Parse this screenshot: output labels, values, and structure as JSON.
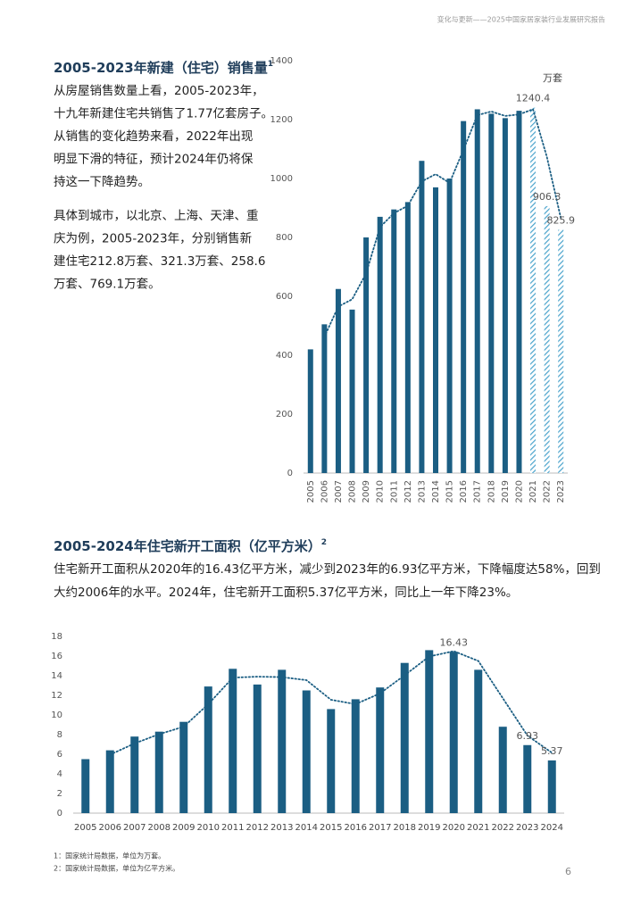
{
  "header": "变化与更新——2025中国家居家装行业发展研究报告",
  "sections": [
    {
      "paragraphs": [
        [
          "从房屋销售数量上看，2005-2023年，",
          "十九年新建住宅共销售了1.77亿套房子。",
          "从销售的变化趋势来看，2022年出现",
          "明显下滑的特征，预计2024年仍将保",
          "持这一下降趋势。"
        ],
        [
          "具体到城市，以北京、上海、天津、重",
          "庆为例，2005-2023年，分别销售新",
          "建住宅212.8万套、321.3万套、258.6",
          "万套、769.1万套。"
        ]
      ]
    },
    {
      "paragraphs": [
        [
          "住宅新开工面积从2020年的16.43亿平方米，减少到2023年的6.93亿平方米，下降幅度达58%，回到",
          "大约2006年的水平。2024年，住宅新开工面积5.37亿平方米，同比上一年下降23%。"
        ]
      ]
    }
  ],
  "chart_data": [
    {
      "type": "bar",
      "title": "2005-2023年新建（住宅）销售量",
      "title_ref": "1",
      "unit": "万套",
      "categories": [
        "2005",
        "2006",
        "2007",
        "2008",
        "2009",
        "2010",
        "2011",
        "2012",
        "2013",
        "2014",
        "2015",
        "2016",
        "2017",
        "2018",
        "2019",
        "2020",
        "2021",
        "2022",
        "2023"
      ],
      "values": [
        420,
        505,
        625,
        555,
        800,
        870,
        895,
        920,
        1060,
        970,
        1000,
        1195,
        1235,
        1220,
        1205,
        1230,
        1240.4,
        906.3,
        825.9
      ],
      "value_labels": [
        null,
        null,
        null,
        null,
        null,
        null,
        null,
        null,
        null,
        null,
        null,
        null,
        null,
        null,
        null,
        null,
        "1240.4",
        "906.3",
        "825.9"
      ],
      "hatched": [
        false,
        false,
        false,
        false,
        false,
        false,
        false,
        false,
        false,
        false,
        false,
        false,
        false,
        false,
        false,
        false,
        true,
        true,
        true
      ],
      "trend": [
        null,
        462.5,
        565,
        590,
        677.5,
        835,
        882.5,
        907.5,
        990,
        1015,
        985,
        1097.5,
        1215,
        1227.5,
        1212.5,
        1217.5,
        1235.2,
        1073.4,
        866.1
      ],
      "color": "#1b5e83",
      "hatch_color": "#4aa3cc",
      "trend_style": "dotted",
      "ylim": [
        0,
        1400
      ],
      "yticks": [
        0,
        200,
        400,
        600,
        800,
        1000,
        1200,
        1400
      ],
      "x_label_rotation": -90
    },
    {
      "type": "bar",
      "title": "2005-2024年住宅新开工面积（亿平方米）",
      "title_ref": "2",
      "categories": [
        "2005",
        "2006",
        "2007",
        "2008",
        "2009",
        "2010",
        "2011",
        "2012",
        "2013",
        "2014",
        "2015",
        "2016",
        "2017",
        "2018",
        "2019",
        "2020",
        "2021",
        "2022",
        "2023",
        "2024"
      ],
      "values": [
        5.5,
        6.4,
        7.8,
        8.3,
        9.3,
        12.9,
        14.7,
        13.1,
        14.6,
        12.5,
        10.6,
        11.6,
        12.8,
        15.3,
        16.6,
        16.43,
        14.6,
        8.8,
        6.93,
        5.37
      ],
      "value_labels": [
        null,
        null,
        null,
        null,
        null,
        null,
        null,
        null,
        null,
        null,
        null,
        null,
        null,
        null,
        null,
        "16.43",
        null,
        null,
        "6.93",
        "5.37"
      ],
      "trend": [
        null,
        5.95,
        7.1,
        8.05,
        8.8,
        11.1,
        13.8,
        13.9,
        13.85,
        13.55,
        11.55,
        11.1,
        12.2,
        14.05,
        15.95,
        16.5,
        15.5,
        11.7,
        7.9,
        6.15
      ],
      "color": "#1b5e83",
      "trend_style": "dotted",
      "ylim": [
        0,
        18
      ],
      "yticks": [
        0,
        2,
        4,
        6,
        8,
        10,
        12,
        14,
        16,
        18
      ],
      "x_label_rotation": 0
    }
  ],
  "footnotes": [
    "1：国家统计局数据，单位为万套。",
    "2：国家统计局数据，单位为亿平方米。"
  ],
  "page_number": "6"
}
